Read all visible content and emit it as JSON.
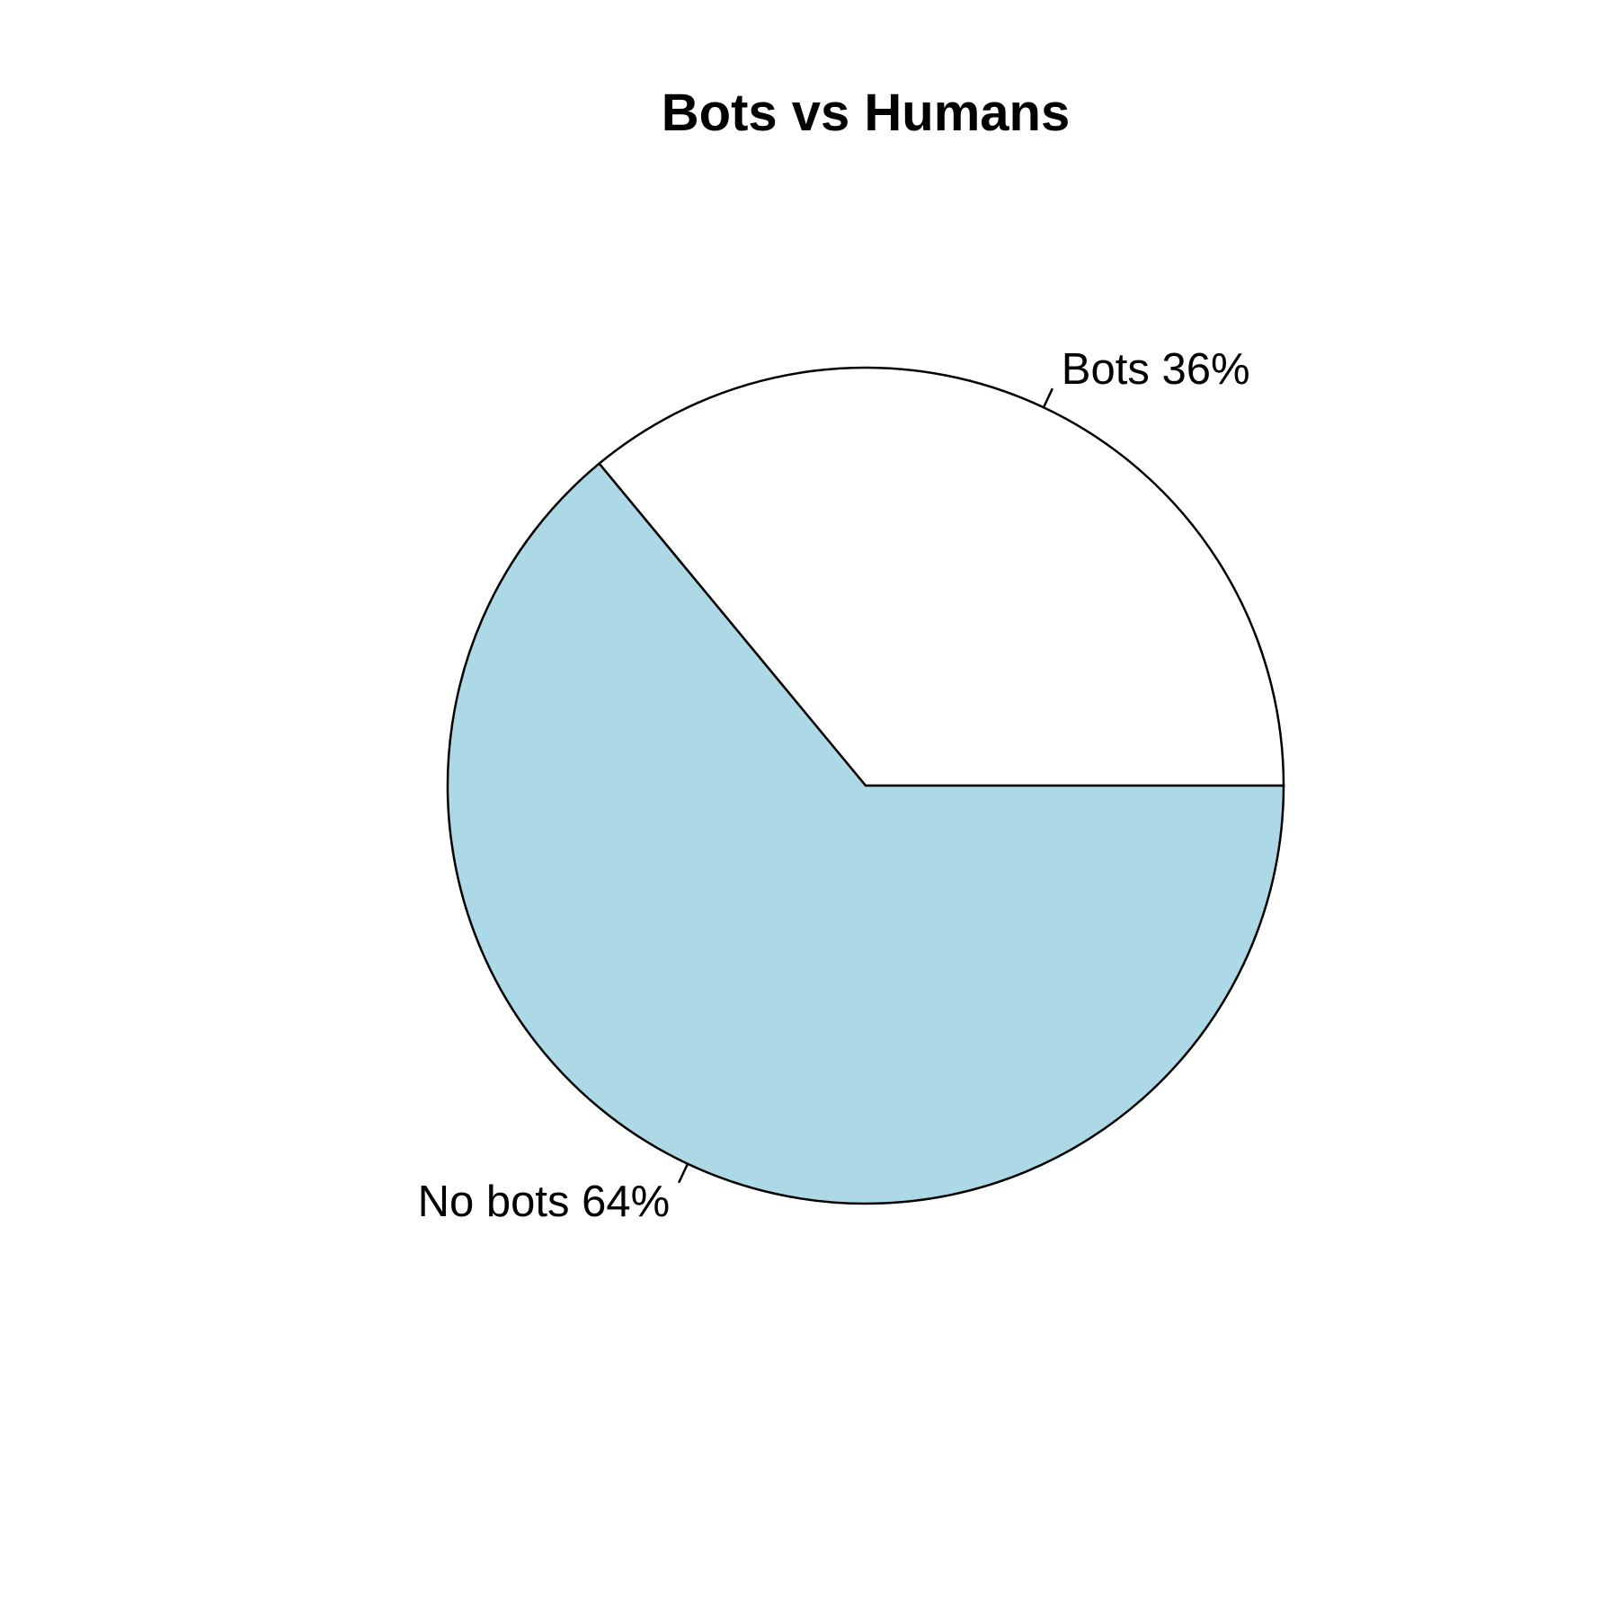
{
  "chart_data": {
    "type": "pie",
    "title": "Bots vs Humans",
    "slices": [
      {
        "label": "Bots 36%",
        "value": 36,
        "color": "#ffffff"
      },
      {
        "label": "No bots 64%",
        "value": 64,
        "color": "#add8e6"
      }
    ],
    "start_angle_deg": 0,
    "direction": "counterclockwise",
    "legend": "none"
  }
}
